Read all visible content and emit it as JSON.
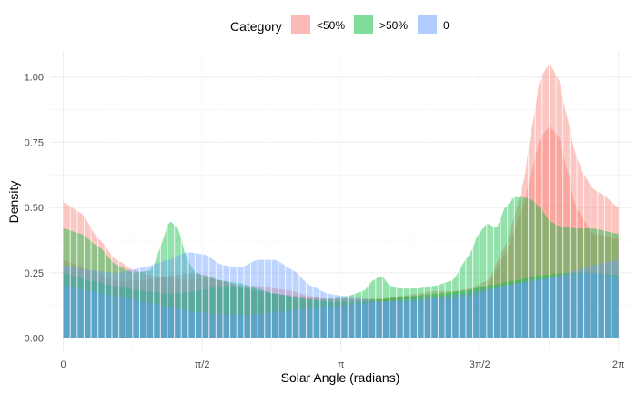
{
  "chart_data": {
    "type": "area",
    "title": "",
    "xlabel": "Solar Angle (radians)",
    "ylabel": "Density",
    "xlim": [
      -0.15,
      6.42
    ],
    "ylim": [
      -0.05,
      1.1
    ],
    "grid": true,
    "x_ticks": [
      {
        "value": 0,
        "label": "0"
      },
      {
        "value": 1.5708,
        "label": "π/2"
      },
      {
        "value": 3.1416,
        "label": "π"
      },
      {
        "value": 4.7124,
        "label": "3π/2"
      },
      {
        "value": 6.2832,
        "label": "2π"
      }
    ],
    "y_ticks": [
      {
        "value": 0,
        "label": "0.00"
      },
      {
        "value": 0.25,
        "label": "0.25"
      },
      {
        "value": 0.5,
        "label": "0.50"
      },
      {
        "value": 0.75,
        "label": "0.75"
      },
      {
        "value": 1.0,
        "label": "1.00"
      }
    ],
    "legend": {
      "title": "Category",
      "position": "top"
    },
    "series": [
      {
        "name": "<50%",
        "color": "#F8766D",
        "curves": [
          {
            "x": [
              0,
              0.2,
              0.4,
              0.6,
              0.8,
              1.0,
              1.2,
              1.4,
              1.6,
              1.8,
              2.0,
              2.2,
              2.4,
              2.6,
              2.8,
              3.0,
              3.2,
              3.4,
              3.6,
              3.8,
              4.0,
              4.2,
              4.4,
              4.6,
              4.8,
              5.0,
              5.1,
              5.2,
              5.3,
              5.4,
              5.5,
              5.6,
              5.7,
              5.8,
              5.9,
              6.0,
              6.1,
              6.2832
            ],
            "y": [
              0.52,
              0.48,
              0.38,
              0.3,
              0.26,
              0.24,
              0.23,
              0.22,
              0.23,
              0.22,
              0.2,
              0.2,
              0.19,
              0.18,
              0.16,
              0.15,
              0.15,
              0.15,
              0.15,
              0.16,
              0.17,
              0.18,
              0.18,
              0.19,
              0.22,
              0.35,
              0.46,
              0.58,
              0.8,
              1.0,
              1.05,
              1.0,
              0.85,
              0.7,
              0.62,
              0.57,
              0.55,
              0.5
            ]
          },
          {
            "x": [
              0,
              0.3,
              0.6,
              0.9,
              1.2,
              1.5,
              1.8,
              2.1,
              2.4,
              2.7,
              3.0,
              3.3,
              3.6,
              3.9,
              4.2,
              4.5,
              4.8,
              5.0,
              5.2,
              5.3,
              5.4,
              5.5,
              5.6,
              5.7,
              5.8,
              6.0,
              6.2832
            ],
            "y": [
              0.3,
              0.26,
              0.22,
              0.22,
              0.24,
              0.25,
              0.22,
              0.18,
              0.17,
              0.16,
              0.15,
              0.15,
              0.15,
              0.16,
              0.16,
              0.17,
              0.2,
              0.32,
              0.5,
              0.64,
              0.77,
              0.81,
              0.78,
              0.65,
              0.5,
              0.4,
              0.38
            ]
          }
        ]
      },
      {
        "name": ">50%",
        "color": "#00BA38",
        "curves": [
          {
            "x": [
              0,
              0.2,
              0.4,
              0.6,
              0.8,
              1.0,
              1.1,
              1.2,
              1.3,
              1.4,
              1.5,
              1.6,
              1.8,
              2.0,
              2.2,
              2.4,
              2.6,
              2.8,
              3.0,
              3.2,
              3.4,
              3.5,
              3.6,
              3.7,
              3.8,
              4.0,
              4.2,
              4.4,
              4.6,
              4.7,
              4.8,
              4.9,
              5.0,
              5.1,
              5.2,
              5.3,
              5.4,
              5.5,
              5.6,
              5.8,
              6.0,
              6.2832
            ],
            "y": [
              0.42,
              0.4,
              0.35,
              0.28,
              0.25,
              0.26,
              0.35,
              0.45,
              0.42,
              0.3,
              0.25,
              0.24,
              0.22,
              0.21,
              0.19,
              0.17,
              0.16,
              0.15,
              0.15,
              0.16,
              0.18,
              0.22,
              0.24,
              0.2,
              0.19,
              0.19,
              0.2,
              0.22,
              0.32,
              0.4,
              0.44,
              0.42,
              0.5,
              0.54,
              0.54,
              0.53,
              0.5,
              0.45,
              0.43,
              0.42,
              0.42,
              0.4
            ]
          },
          {
            "x": [
              0,
              0.3,
              0.6,
              0.9,
              1.2,
              1.5,
              1.8,
              2.1,
              2.4,
              2.7,
              3.0,
              3.3,
              3.6,
              3.9,
              4.2,
              4.5,
              4.8,
              5.1,
              5.4,
              5.7,
              6.0,
              6.2832
            ],
            "y": [
              0.25,
              0.22,
              0.2,
              0.18,
              0.17,
              0.18,
              0.2,
              0.19,
              0.17,
              0.15,
              0.14,
              0.14,
              0.15,
              0.16,
              0.17,
              0.18,
              0.2,
              0.22,
              0.24,
              0.25,
              0.25,
              0.24
            ]
          }
        ]
      },
      {
        "name": "0",
        "color": "#619CFF",
        "curves": [
          {
            "x": [
              0,
              0.3,
              0.6,
              0.9,
              1.2,
              1.4,
              1.6,
              1.8,
              2.0,
              2.2,
              2.4,
              2.6,
              2.8,
              3.0,
              3.2,
              3.4,
              3.6,
              3.8,
              4.0,
              4.2,
              4.4,
              4.6,
              4.8,
              5.0,
              5.2,
              5.4,
              5.6,
              5.8,
              6.0,
              6.2832
            ],
            "y": [
              0.28,
              0.26,
              0.25,
              0.27,
              0.3,
              0.33,
              0.32,
              0.28,
              0.27,
              0.3,
              0.3,
              0.26,
              0.2,
              0.17,
              0.16,
              0.15,
              0.14,
              0.14,
              0.14,
              0.15,
              0.15,
              0.16,
              0.18,
              0.2,
              0.21,
              0.22,
              0.24,
              0.26,
              0.28,
              0.3
            ]
          },
          {
            "x": [
              0,
              0.3,
              0.6,
              0.9,
              1.2,
              1.5,
              1.8,
              2.1,
              2.4,
              2.7,
              3.0,
              3.3,
              3.6,
              3.9,
              4.2,
              4.5,
              4.8,
              5.1,
              5.4,
              5.7,
              6.0,
              6.2832
            ],
            "y": [
              0.2,
              0.18,
              0.16,
              0.14,
              0.12,
              0.1,
              0.09,
              0.09,
              0.1,
              0.11,
              0.12,
              0.13,
              0.14,
              0.15,
              0.16,
              0.17,
              0.19,
              0.21,
              0.23,
              0.24,
              0.25,
              0.23
            ]
          }
        ]
      }
    ]
  }
}
